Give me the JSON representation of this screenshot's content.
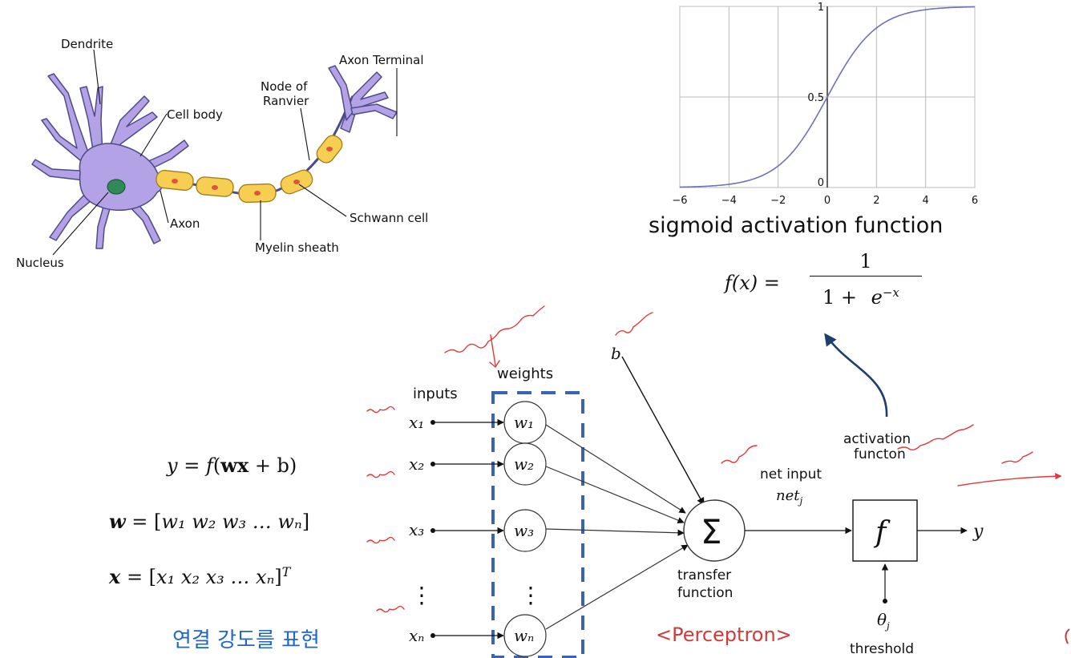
{
  "neuron": {
    "labels": {
      "dendrite": "Dendrite",
      "cell_body": "Cell body",
      "nucleus": "Nucleus",
      "axon": "Axon",
      "node_of_ranvier_1": "Node of",
      "node_of_ranvier_2": "Ranvier",
      "axon_terminal": "Axon Terminal",
      "schwann_cell": "Schwann cell",
      "myelin_sheath": "Myelin sheath"
    },
    "colors": {
      "cell": "#b3a3e6",
      "cell_stroke": "#4f4a8a",
      "nucleus": "#2f8a55",
      "myelin": "#f6cf52",
      "myelin_spot": "#e2533f"
    }
  },
  "chart_data": {
    "type": "line",
    "title": "",
    "xlabel": "",
    "ylabel": "",
    "xlim": [
      -6,
      6
    ],
    "ylim": [
      0,
      1
    ],
    "x_ticks": [
      "−6",
      "−4",
      "−2",
      "0",
      "2",
      "4",
      "6"
    ],
    "y_ticks": [
      "0",
      "0.5",
      "1"
    ],
    "grid": true,
    "series": [
      {
        "x": [
          -6,
          -5,
          -4,
          -3,
          -2,
          -1,
          0,
          1,
          2,
          3,
          4,
          5,
          6
        ],
        "values": [
          0.0025,
          0.0067,
          0.018,
          0.047,
          0.119,
          0.269,
          0.5,
          0.731,
          0.881,
          0.953,
          0.982,
          0.9933,
          0.9975
        ],
        "color": "#6f72bb"
      }
    ]
  },
  "sigmoid": {
    "title": "sigmoid activation function",
    "formula_lhs": "f(x) =",
    "formula_num": "1",
    "formula_den_prefix": "1 +",
    "formula_den_base": "e",
    "formula_den_exp": "−x"
  },
  "equations": {
    "y_line": {
      "lhs": "y",
      "eq": " = ",
      "f": "f",
      "args_open": "(",
      "w": "w",
      "x": "x",
      "plus_b": " + b)"
    },
    "w_line": {
      "lhs": "w",
      "eq": " = [",
      "items": "w₁ w₂ w₃ … wₙ",
      "close": "]"
    },
    "x_line": {
      "lhs": "x",
      "eq": " = [",
      "items": "x₁ x₂ x₃ … xₙ",
      "close": "]",
      "sup": "T"
    }
  },
  "perceptron": {
    "inputs_label": "inputs",
    "weights_label": "weights",
    "inputs": [
      "x₁",
      "x₂",
      "x₃",
      "xₙ"
    ],
    "weights": [
      "w₁",
      "w₂",
      "w₃",
      "wₙ"
    ],
    "vdots": "⋮",
    "bias": "b",
    "sum_symbol": "Σ",
    "transfer_1": "transfer",
    "transfer_2": "function",
    "net_input": "net input",
    "net_j": "net",
    "net_j_sub": "j",
    "activation_1": "activation",
    "activation_2": "functon",
    "f_box": "f",
    "output": "y",
    "threshold_symbol": "θ",
    "threshold_sub": "j",
    "threshold_label": "threshold",
    "colors": {
      "dashed_box": "#3a63b8",
      "handwriting": "#e23a3a",
      "arrow_blue": "#1d3f6e"
    }
  },
  "captions": {
    "korean": "연결 강도를 표현",
    "perceptron": "<Perceptron>"
  }
}
